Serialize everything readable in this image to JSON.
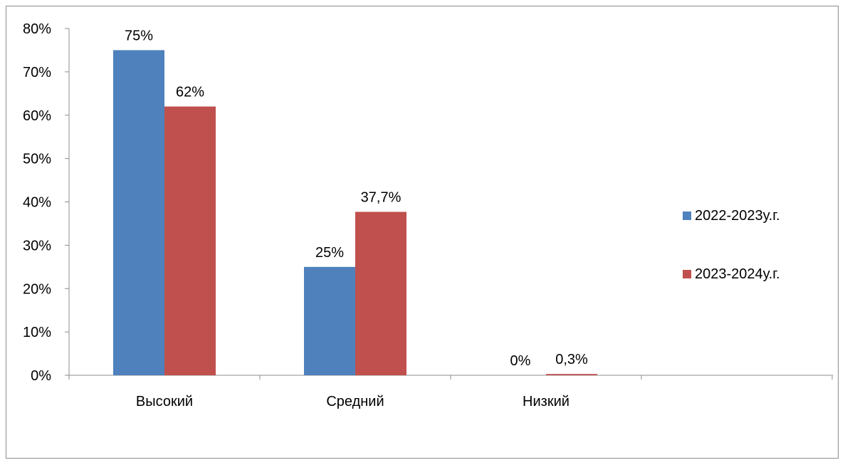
{
  "chart_data": {
    "type": "bar",
    "categories": [
      "Высокий",
      "Средний",
      "Низкий"
    ],
    "series": [
      {
        "name": "2022-2023у.г.",
        "values": [
          75,
          25,
          0
        ],
        "labels": [
          "75%",
          "25%",
          "0%"
        ],
        "color": "#4f81bd"
      },
      {
        "name": "2023-2024у.г.",
        "values": [
          62,
          37.7,
          0.3
        ],
        "labels": [
          "62%",
          "37,7%",
          "0,3%"
        ],
        "color": "#c0504d"
      }
    ],
    "yticks": [
      "0%",
      "10%",
      "20%",
      "30%",
      "40%",
      "50%",
      "60%",
      "70%",
      "80%"
    ],
    "ylim": [
      0,
      80
    ],
    "legend_position": "right",
    "grid": false
  }
}
